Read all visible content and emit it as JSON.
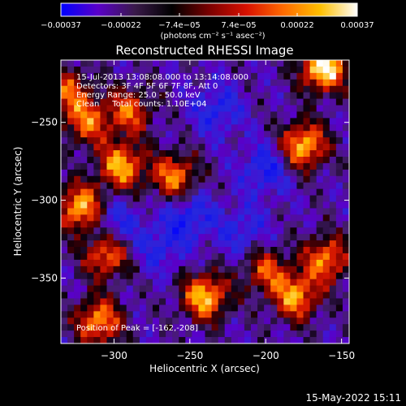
{
  "chart_data": {
    "type": "heatmap",
    "title": "Reconstructed RHESSI Image",
    "xlabel": "Heliocentric X (arcsec)",
    "ylabel": "Heliocentric Y (arcsec)",
    "xlim": [
      -335,
      -145
    ],
    "ylim": [
      -392,
      -210
    ],
    "x_ticks": [
      -300,
      -250,
      -200,
      -150
    ],
    "x_tick_labels": [
      "−300",
      "−250",
      "−200",
      "−150"
    ],
    "y_ticks": [
      -250,
      -300,
      -350
    ],
    "y_tick_labels": [
      "−250",
      "−300",
      "−350"
    ],
    "colorbar": {
      "range": [
        -0.00037,
        0.00037
      ],
      "tick_labels": [
        "−0.00037",
        "−0.00022",
        "−7.4e−05",
        "7.4e−05",
        "0.00022",
        "0.00037"
      ],
      "units": "(photons cm⁻² s⁻¹ asec⁻²)",
      "colors": [
        "#0000ff",
        "#5a00c8",
        "#3a1a4a",
        "#000000",
        "#7a0000",
        "#d81000",
        "#ff6a00",
        "#ffc000",
        "#ffffff"
      ]
    },
    "annotations": [
      "15-Jul-2013 13:08:08.000 to 13:14:08.000",
      "Detectors: 3F 4F 5F 6F 7F 8F, Att 0",
      "Energy Range: 25.0 - 50.0 keV",
      "Clean     Total counts: 1.10E+04"
    ],
    "peak_label": "Position of Peak = [-162,-208]",
    "peak_position": [
      -162,
      -208
    ],
    "bright_regions": [
      {
        "x": -240,
        "y": -362,
        "level": 0.85
      },
      {
        "x": -305,
        "y": -335,
        "level": 0.7
      },
      {
        "x": -295,
        "y": -278,
        "level": 0.8
      },
      {
        "x": -290,
        "y": -243,
        "level": 0.6
      },
      {
        "x": -260,
        "y": -285,
        "level": 0.7
      },
      {
        "x": -322,
        "y": -305,
        "level": 0.85
      },
      {
        "x": -318,
        "y": -250,
        "level": 0.6
      },
      {
        "x": -175,
        "y": -265,
        "level": 0.85
      },
      {
        "x": -162,
        "y": -215,
        "level": 1.0
      },
      {
        "x": -160,
        "y": -338,
        "level": 0.7
      },
      {
        "x": -180,
        "y": -362,
        "level": 0.75
      },
      {
        "x": -310,
        "y": -378,
        "level": 0.75
      },
      {
        "x": -200,
        "y": -345,
        "level": 0.55
      },
      {
        "x": -330,
        "y": -230,
        "level": 0.55
      }
    ],
    "dark_regions": [
      {
        "x": -250,
        "y": -310,
        "level": 0.45
      },
      {
        "x": -232,
        "y": -242,
        "level": 0.4
      },
      {
        "x": -300,
        "y": -315,
        "level": 0.4
      },
      {
        "x": -200,
        "y": -280,
        "level": 0.45
      },
      {
        "x": -215,
        "y": -320,
        "level": 0.35
      },
      {
        "x": -270,
        "y": -330,
        "level": 0.35
      }
    ]
  },
  "footer": {
    "timestamp": "15-May-2022 15:11"
  }
}
